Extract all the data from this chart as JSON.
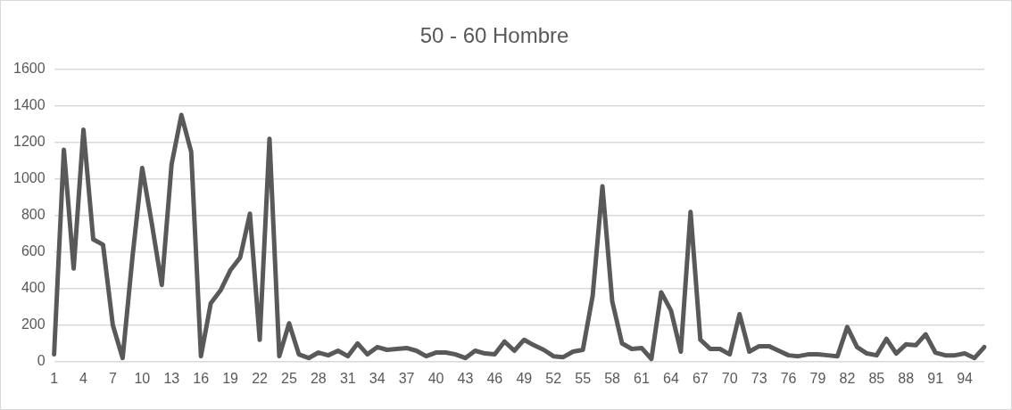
{
  "chart_data": {
    "type": "line",
    "title": "50 - 60 Hombre",
    "categories": [
      "1",
      null,
      null,
      "4",
      null,
      null,
      "7",
      null,
      null,
      "10",
      null,
      null,
      "13",
      null,
      null,
      "16",
      null,
      null,
      "19",
      null,
      null,
      "22",
      null,
      null,
      "25",
      null,
      null,
      "28",
      null,
      null,
      "31",
      null,
      null,
      "34",
      null,
      null,
      "37",
      null,
      null,
      "40",
      null,
      null,
      "43",
      null,
      null,
      "46",
      null,
      null,
      "49",
      null,
      null,
      "52",
      null,
      null,
      "55",
      null,
      null,
      "58",
      null,
      null,
      "61",
      null,
      null,
      "64",
      null,
      null,
      "67",
      null,
      null,
      "70",
      null,
      null,
      "73",
      null,
      null,
      "76",
      null,
      null,
      "79",
      null,
      null,
      "82",
      null,
      null,
      "85",
      null,
      null,
      "88",
      null,
      null,
      "91",
      null,
      null,
      "94",
      null,
      null
    ],
    "series": [
      {
        "color": "#595959",
        "values": [
          40,
          1160,
          510,
          1270,
          670,
          640,
          200,
          20,
          570,
          1060,
          750,
          420,
          1080,
          1350,
          1150,
          30,
          320,
          390,
          500,
          570,
          810,
          120,
          1220,
          30,
          210,
          40,
          20,
          50,
          35,
          60,
          30,
          100,
          40,
          80,
          65,
          70,
          75,
          60,
          30,
          50,
          50,
          40,
          20,
          60,
          45,
          40,
          110,
          60,
          120,
          90,
          65,
          30,
          25,
          55,
          65,
          360,
          960,
          330,
          100,
          70,
          75,
          15,
          380,
          280,
          55,
          820,
          120,
          70,
          70,
          40,
          260,
          55,
          85,
          85,
          60,
          35,
          30,
          40,
          40,
          35,
          30,
          190,
          80,
          45,
          35,
          125,
          45,
          95,
          90,
          150,
          50,
          35,
          35,
          45,
          20,
          80
        ]
      }
    ],
    "ylim": [
      0,
      1600
    ],
    "yticks": [
      0,
      200,
      400,
      600,
      800,
      1000,
      1200,
      1400,
      1600
    ],
    "grid": "y",
    "legend": false,
    "marker": "none",
    "line_style": "solid"
  }
}
